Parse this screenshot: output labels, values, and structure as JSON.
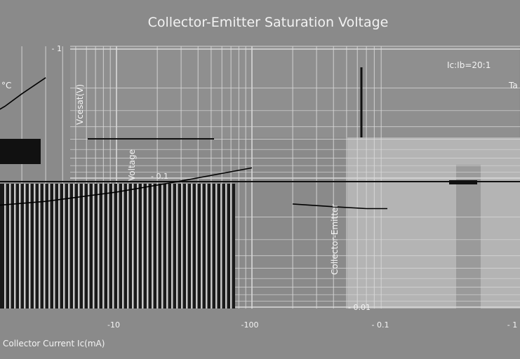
{
  "chart_data": {
    "type": "line",
    "title": "Collector-Emitter Saturation Voltage",
    "xlabel": "Collector Current   Ic(mA)",
    "ylabel_parts": [
      "Collector-Emitter",
      "Voltage",
      "Vcesat(V)"
    ],
    "x_ticks": [
      "-10",
      "-100",
      "- 0.1",
      "- 1"
    ],
    "y_ticks": [
      "- 1",
      "- 0.1",
      "- 0.01"
    ],
    "annotations": [
      "Ic:Ib=20:1",
      "Ta",
      "°C"
    ],
    "x_scale": "log",
    "y_scale": "log",
    "xlim": [
      -1,
      -1000
    ],
    "ylim": [
      -0.01,
      -1
    ],
    "grid": true,
    "series": [
      {
        "x": [
          -1,
          -3,
          -10,
          -30,
          -100
        ],
        "y": [
          -0.06,
          -0.066,
          -0.078,
          -0.095,
          -0.12
        ]
      },
      {
        "x": [
          -1,
          -1.5,
          -2,
          -3
        ],
        "y": [
          -0.28,
          -0.36,
          -0.45,
          -0.6
        ]
      },
      {
        "x": [
          -200,
          -400,
          -700,
          -1000
        ],
        "y": [
          -0.063,
          -0.06,
          -0.058,
          -0.058
        ]
      }
    ]
  },
  "colors": {
    "background": "#8a8a8a",
    "grid": "#d9d9d9",
    "curve": "#000000",
    "text": "#f4f4f4"
  }
}
